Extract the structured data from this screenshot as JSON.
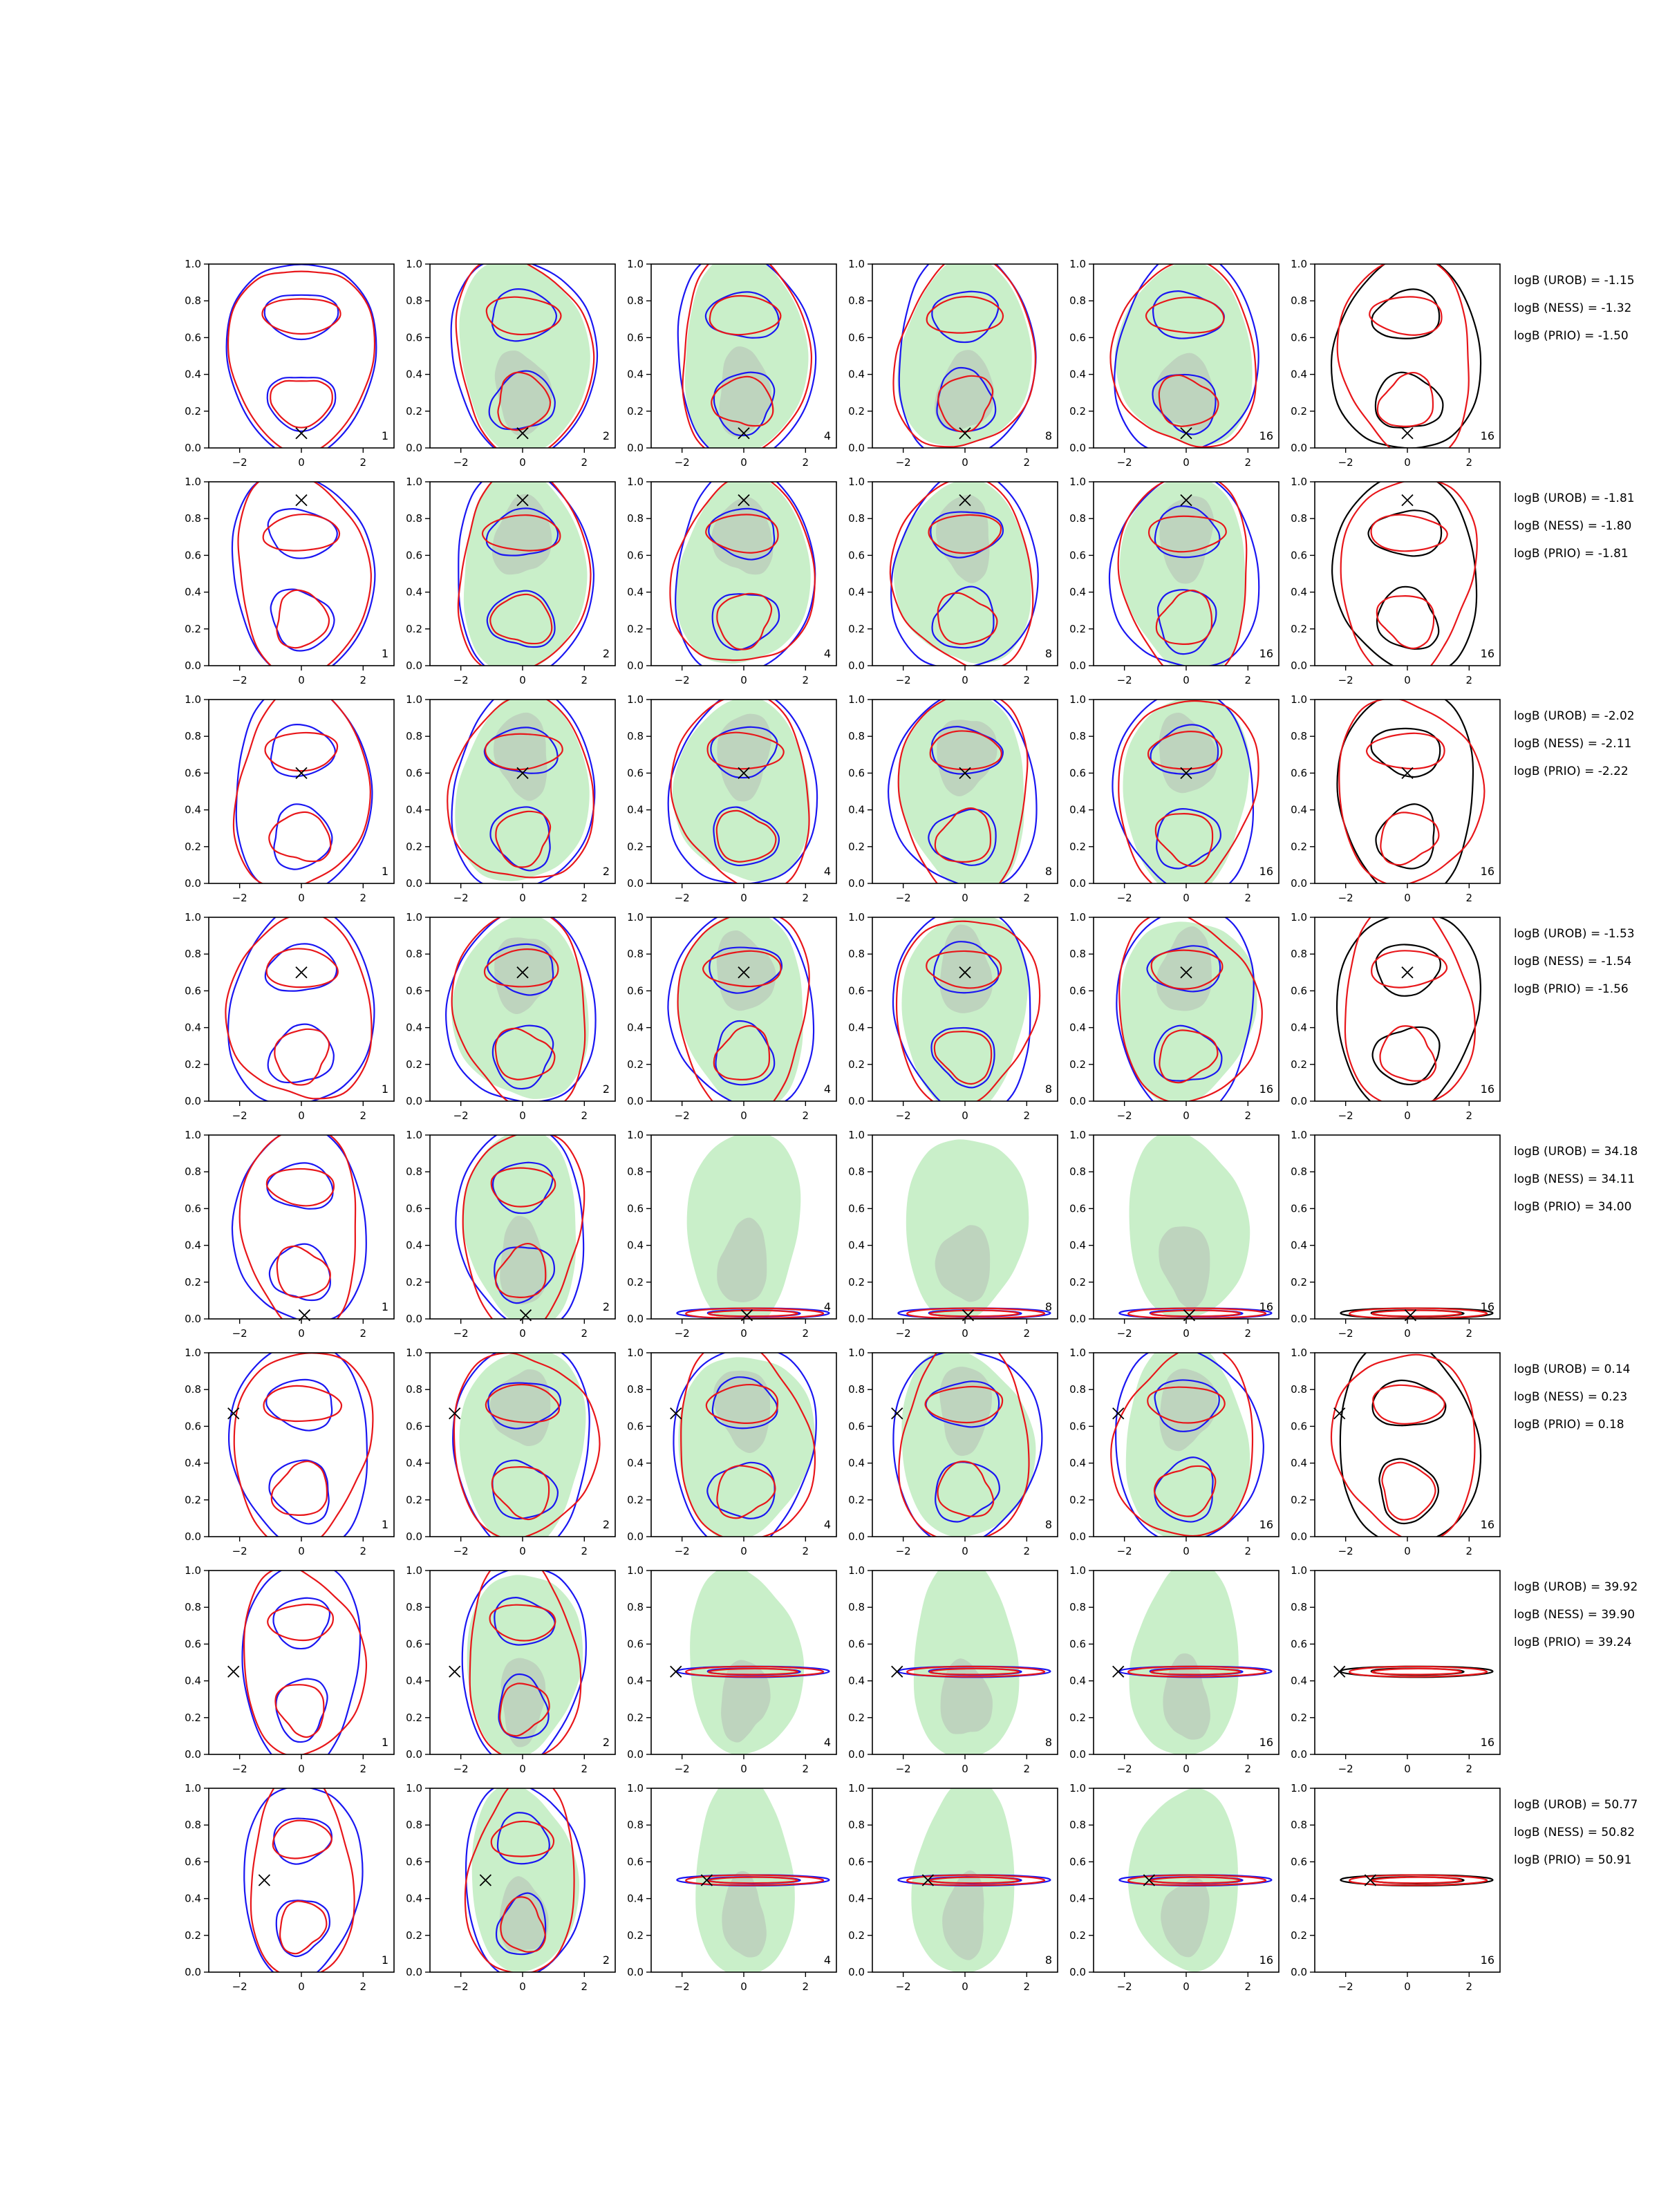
{
  "figure": {
    "rows": 8,
    "cols": 6,
    "panel_counts": [
      1,
      2,
      4,
      8,
      16,
      16
    ],
    "colors": {
      "red": "#e8161a",
      "blue": "#1a16f2",
      "black": "#000000",
      "green_fill": "#c9efc9",
      "gray_fill": "#b7c2b7"
    }
  },
  "axes": {
    "xlim": [
      -3,
      3
    ],
    "ylim": [
      0.0,
      1.0
    ],
    "xticks": [
      "−2",
      "0",
      "2"
    ],
    "xtick_values": [
      -2,
      0,
      2
    ],
    "yticks": [
      "0.0",
      "0.2",
      "0.4",
      "0.6",
      "0.8",
      "1.0"
    ],
    "ytick_values": [
      0.0,
      0.2,
      0.4,
      0.6,
      0.8,
      1.0
    ]
  },
  "chart_data": {
    "type": "contour_grid",
    "rows": [
      {
        "marker": [
          0,
          0.08
        ],
        "width": 1.0,
        "logB": {
          "UROB": "logB (UROB) = -1.15",
          "NESS": "logB (NESS) = -1.32",
          "PRIO": "logB (PRIO) = -1.50"
        }
      },
      {
        "marker": [
          0,
          0.9
        ],
        "width": 1.0,
        "logB": {
          "UROB": "logB (UROB) = -1.81",
          "NESS": "logB (NESS) = -1.80",
          "PRIO": "logB (PRIO) = -1.81"
        }
      },
      {
        "marker": [
          0,
          0.6
        ],
        "width": 1.0,
        "logB": {
          "UROB": "logB (UROB) = -2.02",
          "NESS": "logB (NESS) = -2.11",
          "PRIO": "logB (PRIO) = -2.22"
        }
      },
      {
        "marker": [
          0,
          0.7
        ],
        "width": 1.0,
        "logB": {
          "UROB": "logB (UROB) = -1.53",
          "NESS": "logB (NESS) = -1.54",
          "PRIO": "logB (PRIO) = -1.56"
        }
      },
      {
        "marker": [
          0.1,
          0.02
        ],
        "width": 0.9,
        "logB": {
          "UROB": "logB (UROB) = 34.18",
          "NESS": "logB (NESS) = 34.11",
          "PRIO": "logB (PRIO) = 34.00"
        }
      },
      {
        "marker": [
          -2.2,
          0.67
        ],
        "width": 1.0,
        "logB": {
          "UROB": "logB (UROB) = 0.14",
          "NESS": "logB (NESS) = 0.23",
          "PRIO": "logB (PRIO) = 0.18"
        }
      },
      {
        "marker": [
          -2.2,
          0.45
        ],
        "width": 0.85,
        "logB": {
          "UROB": "logB (UROB) = 39.92",
          "NESS": "logB (NESS) = 39.90",
          "PRIO": "logB (PRIO) = 39.24"
        }
      },
      {
        "marker": [
          -1.2,
          0.5
        ],
        "width": 0.8,
        "logB": {
          "UROB": "logB (UROB) = 50.77",
          "NESS": "logB (NESS) = 50.82",
          "PRIO": "logB (PRIO) = 50.91"
        }
      }
    ]
  }
}
